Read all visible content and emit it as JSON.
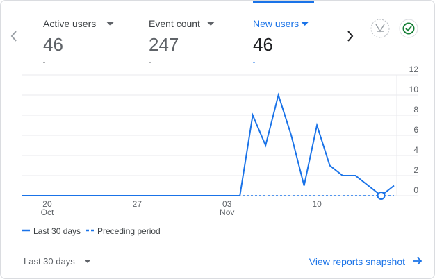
{
  "tabs": [
    {
      "label": "Active users",
      "value": 46
    },
    {
      "label": "Event count",
      "value": 247
    },
    {
      "label": "New users",
      "value": 46,
      "selected": true
    }
  ],
  "chart_data": {
    "type": "line",
    "categories": [
      null,
      null,
      "20",
      null,
      null,
      null,
      null,
      null,
      null,
      "27",
      null,
      null,
      null,
      null,
      null,
      null,
      "03",
      null,
      null,
      null,
      null,
      null,
      null,
      "10",
      null,
      null,
      null,
      null,
      null,
      null
    ],
    "months": [
      null,
      null,
      "Oct",
      null,
      null,
      null,
      null,
      null,
      null,
      null,
      null,
      null,
      null,
      null,
      null,
      null,
      "Nov",
      null,
      null,
      null,
      null,
      null,
      null,
      null,
      null,
      null,
      null,
      null,
      null,
      null
    ],
    "series": [
      {
        "name": "Last 30 days",
        "color": "#1a73e8",
        "values": [
          0,
          0,
          0,
          0,
          0,
          0,
          0,
          0,
          0,
          0,
          0,
          0,
          0,
          0,
          0,
          0,
          0,
          0,
          8,
          5,
          10,
          6,
          1,
          7,
          3,
          2,
          2,
          1,
          0,
          1
        ]
      },
      {
        "name": "Preceding period",
        "color": "#1a73e8",
        "dashed": true,
        "values": [
          0,
          0,
          0,
          0,
          0,
          0,
          0,
          0,
          0,
          0,
          0,
          0,
          0,
          0,
          0,
          0,
          0,
          0,
          0,
          0,
          0,
          0,
          0,
          0,
          0,
          0,
          0,
          0,
          0,
          0
        ]
      }
    ],
    "marker_index": 28,
    "ylim": [
      0,
      12
    ],
    "yticks": [
      0,
      2,
      4,
      6,
      8,
      10,
      12
    ],
    "grid": true,
    "legend": "bottom-left"
  },
  "footer": {
    "range": "Last 30 days",
    "link": "View reports snapshot"
  }
}
